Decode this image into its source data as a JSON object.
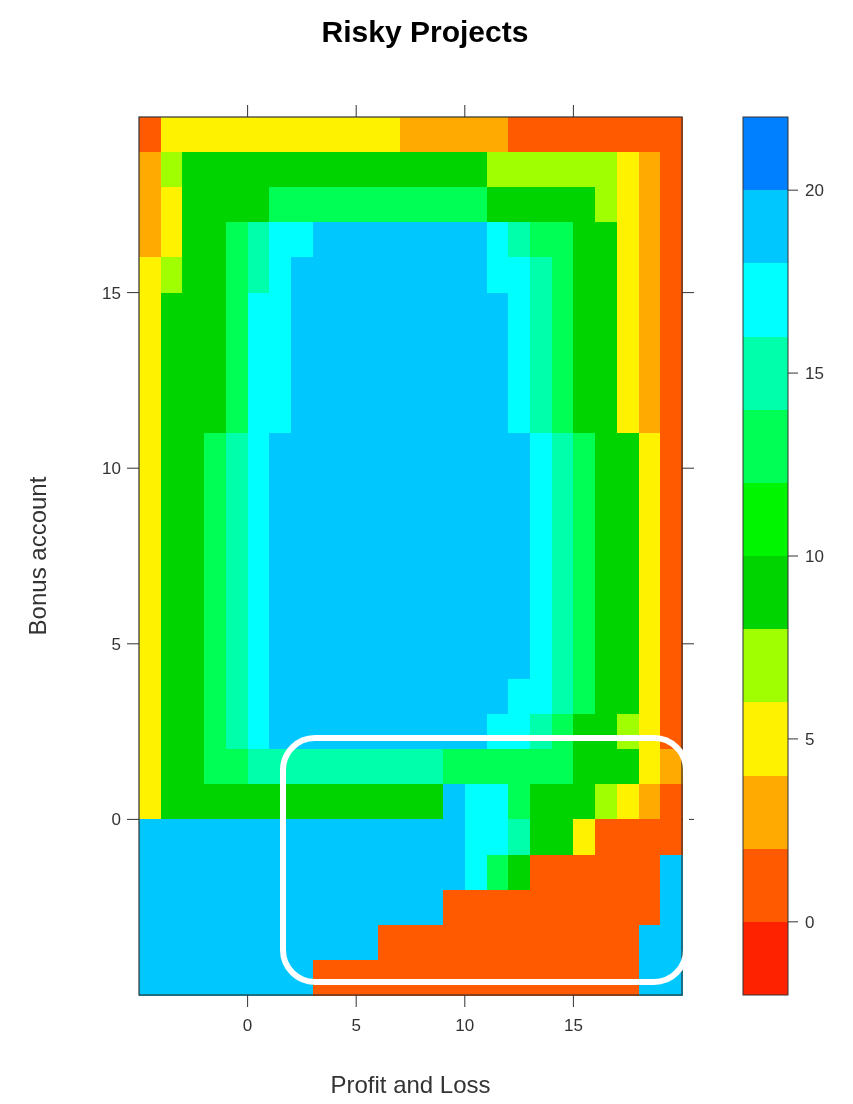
{
  "chart_data": {
    "type": "heatmap",
    "title": "Risky Projects",
    "xlabel": "Profit and Loss",
    "ylabel": "Bonus account",
    "x": [
      -4.5,
      -3.5,
      -2.5,
      -1.5,
      -0.5,
      0.5,
      1.5,
      2.5,
      3.5,
      4.5,
      5.5,
      6.5,
      7.5,
      8.5,
      9.5,
      10.5,
      11.5,
      12.5,
      13.5,
      14.5,
      15.5,
      16.5,
      17.5,
      18.5,
      19.5
    ],
    "y": [
      19.5,
      18.5,
      17.5,
      16.5,
      15.5,
      14.5,
      13.5,
      12.5,
      11.5,
      10.5,
      9.5,
      8.5,
      7.5,
      6.5,
      5.5,
      4.5,
      3.5,
      2.5,
      1.5,
      0.5,
      -0.5,
      -1.5,
      -2.5,
      -3.5,
      -4.5
    ],
    "xlim": [
      -5,
      20
    ],
    "xticks": [
      0,
      5,
      10,
      15
    ],
    "ylim": [
      -5,
      20
    ],
    "yticks": [
      0,
      5,
      10,
      15
    ],
    "clim": [
      -2,
      22
    ],
    "cticks": [
      0,
      5,
      10,
      15,
      20
    ],
    "colors": [
      "#ff2200",
      "#ff5a00",
      "#ffaa00",
      "#fff200",
      "#a0ff00",
      "#00d400",
      "#00f500",
      "#00ff55",
      "#00ffaa",
      "#00ffff",
      "#00c8ff",
      "#0080ff"
    ],
    "cells": [
      [
        1,
        5,
        5,
        5,
        5,
        5,
        5,
        5,
        5,
        5,
        5,
        5,
        3,
        3,
        3,
        3,
        3,
        1,
        1,
        1,
        1,
        1,
        1,
        1,
        1
      ],
      [
        3,
        7,
        9,
        9,
        9,
        9,
        9,
        9,
        9,
        9,
        9,
        9,
        9,
        9,
        9,
        9,
        7,
        7,
        7,
        7,
        7,
        7,
        5,
        3,
        1
      ],
      [
        3,
        5,
        9,
        9,
        9,
        9,
        13,
        13,
        13,
        13,
        13,
        13,
        13,
        13,
        13,
        13,
        9,
        9,
        9,
        9,
        9,
        7,
        5,
        3,
        1
      ],
      [
        3,
        5,
        9,
        9,
        13,
        15,
        17,
        17,
        19,
        19,
        19,
        19,
        19,
        19,
        19,
        19,
        17,
        15,
        13,
        13,
        9,
        9,
        5,
        3,
        1
      ],
      [
        5,
        7,
        9,
        9,
        13,
        15,
        17,
        19,
        19,
        19,
        19,
        19,
        19,
        19,
        19,
        19,
        17,
        17,
        15,
        13,
        9,
        9,
        5,
        3,
        1
      ],
      [
        5,
        9,
        9,
        9,
        13,
        17,
        17,
        19,
        19,
        19,
        19,
        19,
        19,
        19,
        19,
        19,
        19,
        17,
        15,
        13,
        9,
        9,
        5,
        3,
        1
      ],
      [
        5,
        9,
        9,
        9,
        13,
        17,
        17,
        19,
        19,
        19,
        19,
        19,
        19,
        19,
        19,
        19,
        19,
        17,
        15,
        13,
        9,
        9,
        5,
        3,
        1
      ],
      [
        5,
        9,
        9,
        9,
        13,
        17,
        17,
        19,
        19,
        19,
        19,
        19,
        19,
        19,
        19,
        19,
        19,
        17,
        15,
        13,
        9,
        9,
        5,
        3,
        1
      ],
      [
        5,
        9,
        9,
        9,
        13,
        17,
        17,
        19,
        19,
        19,
        19,
        19,
        19,
        19,
        19,
        19,
        19,
        17,
        15,
        13,
        9,
        9,
        5,
        3,
        1
      ],
      [
        5,
        9,
        9,
        13,
        15,
        17,
        19,
        19,
        19,
        19,
        19,
        19,
        19,
        19,
        19,
        19,
        19,
        19,
        17,
        15,
        13,
        9,
        9,
        5,
        1
      ],
      [
        5,
        9,
        9,
        13,
        15,
        17,
        19,
        19,
        19,
        19,
        19,
        19,
        19,
        19,
        19,
        19,
        19,
        19,
        17,
        15,
        13,
        9,
        9,
        5,
        1
      ],
      [
        5,
        9,
        9,
        13,
        15,
        17,
        19,
        19,
        19,
        19,
        19,
        19,
        19,
        19,
        19,
        19,
        19,
        19,
        17,
        15,
        13,
        9,
        9,
        5,
        1
      ],
      [
        5,
        9,
        9,
        13,
        15,
        17,
        19,
        19,
        19,
        19,
        19,
        19,
        19,
        19,
        19,
        19,
        19,
        19,
        17,
        15,
        13,
        9,
        9,
        5,
        1
      ],
      [
        5,
        9,
        9,
        13,
        15,
        17,
        19,
        19,
        19,
        19,
        19,
        19,
        19,
        19,
        19,
        19,
        19,
        19,
        17,
        15,
        13,
        9,
        9,
        5,
        1
      ],
      [
        5,
        9,
        9,
        13,
        15,
        17,
        19,
        19,
        19,
        19,
        19,
        19,
        19,
        19,
        19,
        19,
        19,
        19,
        17,
        15,
        13,
        9,
        9,
        5,
        1
      ],
      [
        5,
        9,
        9,
        13,
        15,
        17,
        19,
        19,
        19,
        19,
        19,
        19,
        19,
        19,
        19,
        19,
        19,
        19,
        17,
        15,
        13,
        9,
        9,
        5,
        1
      ],
      [
        5,
        9,
        9,
        13,
        15,
        17,
        19,
        19,
        19,
        19,
        19,
        19,
        19,
        19,
        19,
        19,
        19,
        17,
        17,
        15,
        13,
        9,
        9,
        5,
        1
      ],
      [
        5,
        9,
        9,
        13,
        15,
        17,
        19,
        19,
        19,
        19,
        19,
        19,
        19,
        19,
        19,
        19,
        17,
        17,
        15,
        13,
        9,
        9,
        7,
        5,
        1
      ],
      [
        5,
        9,
        9,
        13,
        13,
        15,
        15,
        15,
        15,
        15,
        15,
        15,
        15,
        15,
        13,
        13,
        13,
        13,
        13,
        13,
        9,
        9,
        9,
        5,
        3
      ],
      [
        5,
        9,
        9,
        9,
        9,
        9,
        9,
        9,
        9,
        9,
        9,
        9,
        9,
        9,
        19,
        17,
        17,
        13,
        9,
        9,
        9,
        7,
        5,
        3,
        1
      ],
      [
        19,
        19,
        19,
        19,
        19,
        19,
        19,
        19,
        19,
        19,
        19,
        19,
        19,
        19,
        19,
        17,
        17,
        15,
        9,
        9,
        5,
        1,
        1,
        1,
        1
      ],
      [
        19,
        19,
        19,
        19,
        19,
        19,
        19,
        19,
        19,
        19,
        19,
        19,
        19,
        19,
        19,
        17,
        13,
        9,
        1,
        1,
        1,
        1,
        1,
        1,
        19
      ],
      [
        19,
        19,
        19,
        19,
        19,
        19,
        19,
        19,
        19,
        19,
        19,
        19,
        19,
        19,
        1,
        1,
        1,
        1,
        1,
        1,
        1,
        1,
        1,
        1,
        19
      ],
      [
        19,
        19,
        19,
        19,
        19,
        19,
        19,
        19,
        19,
        19,
        19,
        1,
        1,
        1,
        1,
        1,
        1,
        1,
        1,
        1,
        1,
        1,
        1,
        19,
        19
      ],
      [
        19,
        19,
        19,
        19,
        19,
        19,
        19,
        19,
        1,
        1,
        1,
        1,
        1,
        1,
        1,
        1,
        1,
        1,
        1,
        1,
        1,
        1,
        1,
        19,
        19
      ]
    ]
  }
}
